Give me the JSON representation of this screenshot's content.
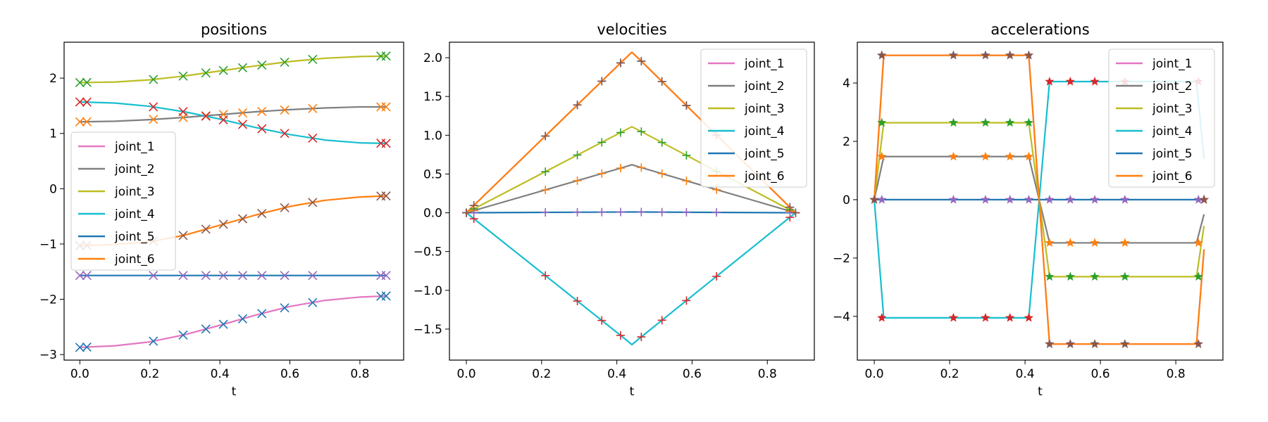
{
  "figure": {
    "background": "#ffffff"
  },
  "chart_data": [
    {
      "id": "positions",
      "type": "line",
      "title": "positions",
      "xlabel": "t",
      "ylabel": "",
      "xlim": [
        -0.045,
        0.925
      ],
      "ylim": [
        -3.1,
        2.65
      ],
      "xticks": [
        0.0,
        0.2,
        0.4,
        0.6,
        0.8
      ],
      "xtick_labels": [
        "0.0",
        "0.2",
        "0.4",
        "0.6",
        "0.8"
      ],
      "yticks": [
        -3,
        -2,
        -1,
        0,
        1,
        2
      ],
      "ytick_labels": [
        "−3",
        "−2",
        "−1",
        "0",
        "1",
        "2"
      ],
      "legend": {
        "placement": "center-left"
      },
      "marker": "x",
      "marker_t": [
        0.0,
        0.02,
        0.21,
        0.295,
        0.36,
        0.41,
        0.465,
        0.52,
        0.585,
        0.665,
        0.86,
        0.875
      ],
      "series": [
        {
          "name": "joint_1",
          "color": "#e377c2",
          "marker_color": "#1f77b4",
          "x": [
            0.0,
            0.1,
            0.2,
            0.3,
            0.4,
            0.5,
            0.6,
            0.7,
            0.8,
            0.875
          ],
          "values": [
            -2.87,
            -2.84,
            -2.77,
            -2.64,
            -2.47,
            -2.29,
            -2.13,
            -2.02,
            -1.96,
            -1.94
          ]
        },
        {
          "name": "joint_2",
          "color": "#7f7f7f",
          "marker_color": "#ff7f0e",
          "x": [
            0.0,
            0.1,
            0.2,
            0.3,
            0.4,
            0.5,
            0.6,
            0.7,
            0.8,
            0.875
          ],
          "values": [
            1.21,
            1.22,
            1.25,
            1.29,
            1.34,
            1.39,
            1.43,
            1.46,
            1.48,
            1.48
          ]
        },
        {
          "name": "joint_3",
          "color": "#bcbd22",
          "marker_color": "#2ca02c",
          "x": [
            0.0,
            0.1,
            0.2,
            0.3,
            0.4,
            0.5,
            0.6,
            0.7,
            0.8,
            0.875
          ],
          "values": [
            1.92,
            1.93,
            1.97,
            2.04,
            2.13,
            2.22,
            2.3,
            2.36,
            2.39,
            2.4
          ]
        },
        {
          "name": "joint_4",
          "color": "#17becf",
          "marker_color": "#d62728",
          "x": [
            0.0,
            0.1,
            0.2,
            0.3,
            0.4,
            0.5,
            0.6,
            0.7,
            0.8,
            0.875
          ],
          "values": [
            1.57,
            1.55,
            1.49,
            1.39,
            1.26,
            1.11,
            0.98,
            0.88,
            0.83,
            0.82
          ]
        },
        {
          "name": "joint_5",
          "color": "#1f77b4",
          "marker_color": "#9467bd",
          "x": [
            0.0,
            0.875
          ],
          "values": [
            -1.57,
            -1.57
          ]
        },
        {
          "name": "joint_6",
          "color": "#ff7f0e",
          "marker_color": "#8c564b",
          "x": [
            0.0,
            0.1,
            0.2,
            0.3,
            0.4,
            0.5,
            0.6,
            0.7,
            0.8,
            0.875
          ],
          "values": [
            -1.03,
            -1.01,
            -0.96,
            -0.84,
            -0.66,
            -0.48,
            -0.32,
            -0.21,
            -0.15,
            -0.13
          ]
        }
      ]
    },
    {
      "id": "velocities",
      "type": "line",
      "title": "velocities",
      "xlabel": "t",
      "ylabel": "",
      "xlim": [
        -0.045,
        0.925
      ],
      "ylim": [
        -1.9,
        2.2
      ],
      "xticks": [
        0.0,
        0.2,
        0.4,
        0.6,
        0.8
      ],
      "xtick_labels": [
        "0.0",
        "0.2",
        "0.4",
        "0.6",
        "0.8"
      ],
      "yticks": [
        -1.5,
        -1.0,
        -0.5,
        0.0,
        0.5,
        1.0,
        1.5,
        2.0
      ],
      "ytick_labels": [
        "−1.5",
        "−1.0",
        "−0.5",
        "0.0",
        "0.5",
        "1.0",
        "1.5",
        "2.0"
      ],
      "legend": {
        "placement": "top-right"
      },
      "marker": "+",
      "marker_t": [
        0.0,
        0.02,
        0.21,
        0.295,
        0.36,
        0.41,
        0.465,
        0.52,
        0.585,
        0.665,
        0.86,
        0.875
      ],
      "series": [
        {
          "name": "joint_1",
          "color": "#e377c2",
          "marker_color": "#1f77b4",
          "x": [
            0.0,
            0.42,
            0.44,
            0.46,
            0.875
          ],
          "values": [
            0.0,
            1.98,
            2.07,
            1.98,
            0.0
          ]
        },
        {
          "name": "joint_2",
          "color": "#7f7f7f",
          "marker_color": "#ff7f0e",
          "x": [
            0.0,
            0.42,
            0.44,
            0.46,
            0.875
          ],
          "values": [
            0.0,
            0.59,
            0.62,
            0.59,
            0.0
          ]
        },
        {
          "name": "joint_3",
          "color": "#bcbd22",
          "marker_color": "#2ca02c",
          "x": [
            0.0,
            0.42,
            0.44,
            0.46,
            0.875
          ],
          "values": [
            0.0,
            1.06,
            1.11,
            1.06,
            0.0
          ]
        },
        {
          "name": "joint_4",
          "color": "#17becf",
          "marker_color": "#d62728",
          "x": [
            0.0,
            0.42,
            0.44,
            0.46,
            0.875
          ],
          "values": [
            0.0,
            -1.62,
            -1.7,
            -1.62,
            0.0
          ]
        },
        {
          "name": "joint_5",
          "color": "#1f77b4",
          "marker_color": "#9467bd",
          "x": [
            0.0,
            0.44,
            0.875
          ],
          "values": [
            0.0,
            0.01,
            0.0
          ]
        },
        {
          "name": "joint_6",
          "color": "#ff7f0e",
          "marker_color": "#8c564b",
          "x": [
            0.0,
            0.42,
            0.44,
            0.46,
            0.875
          ],
          "values": [
            0.0,
            1.98,
            2.07,
            1.98,
            0.0
          ]
        }
      ]
    },
    {
      "id": "accelerations",
      "type": "line",
      "title": "accelerations",
      "xlabel": "t",
      "ylabel": "",
      "xlim": [
        -0.045,
        0.925
      ],
      "ylim": [
        -5.5,
        5.4
      ],
      "xticks": [
        0.0,
        0.2,
        0.4,
        0.6,
        0.8
      ],
      "xtick_labels": [
        "0.0",
        "0.2",
        "0.4",
        "0.6",
        "0.8"
      ],
      "yticks": [
        -4,
        -2,
        0,
        2,
        4
      ],
      "ytick_labels": [
        "−4",
        "−2",
        "0",
        "2",
        "4"
      ],
      "legend": {
        "placement": "top-right"
      },
      "marker": "*",
      "marker_t": [
        0.0,
        0.02,
        0.21,
        0.295,
        0.36,
        0.41,
        0.465,
        0.52,
        0.585,
        0.665,
        0.86,
        0.875
      ],
      "series": [
        {
          "name": "joint_1",
          "color": "#e377c2",
          "marker_color": "#1f77b4",
          "x": [
            0.0,
            0.025,
            0.41,
            0.465,
            0.855,
            0.875
          ],
          "values": [
            0.0,
            4.95,
            4.95,
            -4.95,
            -4.95,
            -1.7
          ],
          "marker_values": [
            0.0,
            4.95,
            4.95,
            4.95,
            4.95,
            4.95,
            -4.95,
            -4.95,
            -4.95,
            -4.95,
            -4.95,
            0.0
          ]
        },
        {
          "name": "joint_2",
          "color": "#7f7f7f",
          "marker_color": "#ff7f0e",
          "x": [
            0.0,
            0.025,
            0.41,
            0.465,
            0.855,
            0.875
          ],
          "values": [
            0.0,
            1.48,
            1.48,
            -1.48,
            -1.48,
            -0.5
          ],
          "marker_values": [
            0.0,
            1.48,
            1.48,
            1.48,
            1.48,
            1.48,
            -1.48,
            -1.48,
            -1.48,
            -1.48,
            -1.48,
            0.0
          ]
        },
        {
          "name": "joint_3",
          "color": "#bcbd22",
          "marker_color": "#2ca02c",
          "x": [
            0.0,
            0.025,
            0.41,
            0.465,
            0.855,
            0.875
          ],
          "values": [
            0.0,
            2.64,
            2.64,
            -2.64,
            -2.64,
            -0.9
          ],
          "marker_values": [
            0.0,
            2.64,
            2.64,
            2.64,
            2.64,
            2.64,
            -2.64,
            -2.64,
            -2.64,
            -2.64,
            -2.64,
            0.0
          ]
        },
        {
          "name": "joint_4",
          "color": "#17becf",
          "marker_color": "#d62728",
          "x": [
            0.0,
            0.025,
            0.41,
            0.465,
            0.855,
            0.875
          ],
          "values": [
            0.0,
            -4.05,
            -4.05,
            4.05,
            4.05,
            1.4
          ],
          "marker_values": [
            0.0,
            -4.05,
            -4.05,
            -4.05,
            -4.05,
            -4.05,
            4.05,
            4.05,
            4.05,
            4.05,
            4.05,
            0.0
          ]
        },
        {
          "name": "joint_5",
          "color": "#1f77b4",
          "marker_color": "#9467bd",
          "x": [
            0.0,
            0.875
          ],
          "values": [
            0.0,
            0.0
          ],
          "marker_values": [
            0.0,
            0.0,
            0.0,
            0.0,
            0.0,
            0.0,
            0.0,
            0.0,
            0.0,
            0.0,
            0.0,
            0.0
          ]
        },
        {
          "name": "joint_6",
          "color": "#ff7f0e",
          "marker_color": "#8c564b",
          "x": [
            0.0,
            0.025,
            0.41,
            0.465,
            0.855,
            0.875
          ],
          "values": [
            0.0,
            4.95,
            4.95,
            -4.95,
            -4.95,
            -1.7
          ],
          "marker_values": [
            0.0,
            4.95,
            4.95,
            4.95,
            4.95,
            4.95,
            -4.95,
            -4.95,
            -4.95,
            -4.95,
            -4.95,
            0.0
          ]
        }
      ]
    }
  ]
}
